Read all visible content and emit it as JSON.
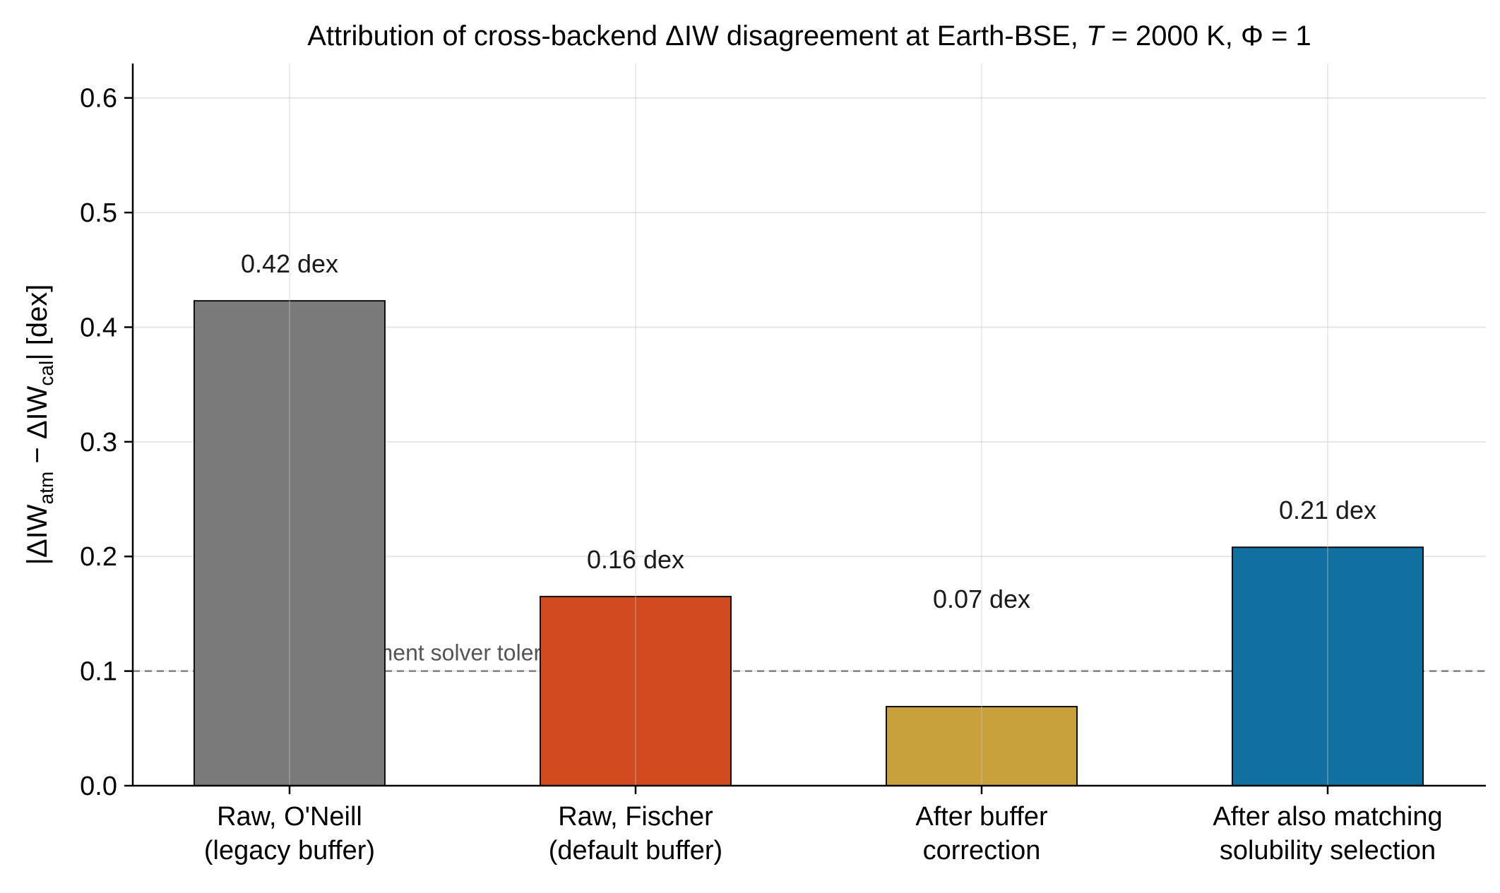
{
  "chart_data": {
    "type": "bar",
    "title": "Attribution of cross-backend ΔIW disagreement at Earth-BSE, T = 2000 K, Φ = 1",
    "title_parts": [
      "Attribution of cross-backend ΔIW disagreement at Earth-BSE, ",
      "T",
      " = 2000 K, Φ = 1"
    ],
    "ylabel": "|ΔIW_atm − ΔIW_cal| [dex]",
    "ylabel_parts": {
      "pre": "|ΔIW",
      "sub1": "atm",
      "mid": " − ΔIW",
      "sub2": "cal",
      "post": "| [dex]"
    },
    "xlabel": "",
    "ylim": [
      0,
      0.63
    ],
    "yticks": [
      0.0,
      0.1,
      0.2,
      0.3,
      0.4,
      0.5,
      0.6
    ],
    "ytick_labels": [
      "0.0",
      "0.1",
      "0.2",
      "0.3",
      "0.4",
      "0.5",
      "0.6"
    ],
    "grid": true,
    "categories": [
      [
        "Raw, O'Neill",
        "(legacy buffer)"
      ],
      [
        "Raw, Fischer",
        "(default buffer)"
      ],
      [
        "After buffer",
        "correction"
      ],
      [
        "After also matching",
        "solubility selection"
      ]
    ],
    "values": [
      0.423,
      0.165,
      0.069,
      0.208
    ],
    "value_labels": [
      "0.42 dex",
      "0.16 dex",
      "0.07 dex",
      "0.21 dex"
    ],
    "colors": [
      "#7a7a7a",
      "#d14a20",
      "#c8a03c",
      "#11709f"
    ],
    "reference_line": {
      "value": 0.1,
      "label": "per-element solver tolerance",
      "color": "#808080"
    }
  }
}
